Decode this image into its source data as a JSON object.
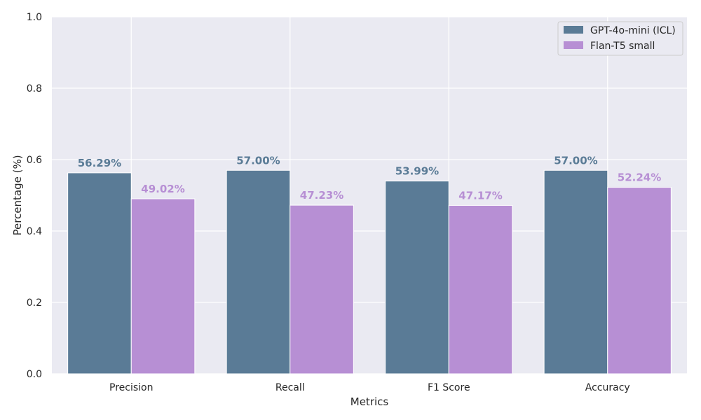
{
  "chart_data": {
    "type": "bar",
    "title": "",
    "xlabel": "Metrics",
    "ylabel": "Percentage (%)",
    "categories": [
      "Precision",
      "Recall",
      "F1 Score",
      "Accuracy"
    ],
    "series": [
      {
        "name": "GPT-4o-mini (ICL)",
        "values": [
          0.5629,
          0.57,
          0.5399,
          0.57
        ],
        "labels": [
          "56.29%",
          "57.00%",
          "53.99%",
          "57.00%"
        ],
        "color": "#5a7b96"
      },
      {
        "name": "Flan-T5 small",
        "values": [
          0.4902,
          0.4723,
          0.4717,
          0.5224
        ],
        "labels": [
          "49.02%",
          "47.23%",
          "47.17%",
          "52.24%"
        ],
        "color": "#b78fd4"
      }
    ],
    "ylim": [
      0,
      1.0
    ],
    "yticks": [
      "0.0",
      "0.2",
      "0.4",
      "0.6",
      "0.8",
      "1.0"
    ],
    "grid": true,
    "legend_position": "top-right",
    "background_color": "#eaeaf2"
  }
}
